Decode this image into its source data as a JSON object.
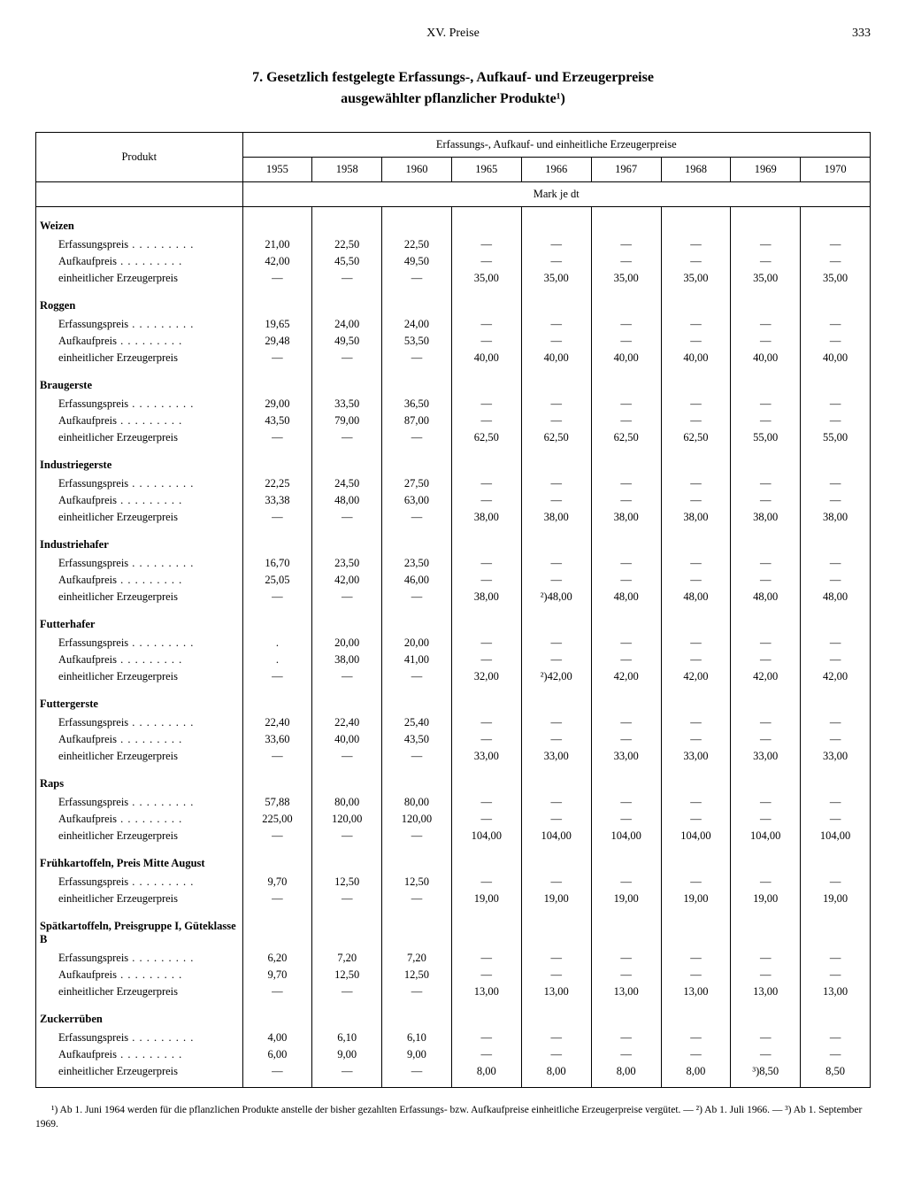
{
  "header": {
    "chapter": "XV. Preise",
    "page": "333"
  },
  "title_l1": "7. Gesetzlich festgelegte Erfassungs-, Aufkauf- und Erzeugerpreise",
  "title_l2": "ausgewählter pflanzlicher Produkte¹)",
  "table": {
    "spanner": "Erfassungs-, Aufkauf- und einheitliche Erzeugerpreise",
    "col_label": "Produkt",
    "unit_row": "Mark je dt",
    "years": [
      "1955",
      "1958",
      "1960",
      "1965",
      "1966",
      "1967",
      "1968",
      "1969",
      "1970"
    ],
    "row_labels": {
      "erf": "Erfassungspreis",
      "auf": "Aufkaufpreis",
      "ein": "einheitlicher Erzeugerpreis"
    },
    "groups": [
      {
        "name": "Weizen",
        "rows": [
          {
            "k": "erf",
            "v": [
              "21,00",
              "22,50",
              "22,50",
              "—",
              "—",
              "—",
              "—",
              "—",
              "—"
            ]
          },
          {
            "k": "auf",
            "v": [
              "42,00",
              "45,50",
              "49,50",
              "—",
              "—",
              "—",
              "—",
              "—",
              "—"
            ]
          },
          {
            "k": "ein",
            "v": [
              "—",
              "—",
              "—",
              "35,00",
              "35,00",
              "35,00",
              "35,00",
              "35,00",
              "35,00"
            ]
          }
        ]
      },
      {
        "name": "Roggen",
        "rows": [
          {
            "k": "erf",
            "v": [
              "19,65",
              "24,00",
              "24,00",
              "—",
              "—",
              "—",
              "—",
              "—",
              "—"
            ]
          },
          {
            "k": "auf",
            "v": [
              "29,48",
              "49,50",
              "53,50",
              "—",
              "—",
              "—",
              "—",
              "—",
              "—"
            ]
          },
          {
            "k": "ein",
            "v": [
              "—",
              "—",
              "—",
              "40,00",
              "40,00",
              "40,00",
              "40,00",
              "40,00",
              "40,00"
            ]
          }
        ]
      },
      {
        "name": "Braugerste",
        "rows": [
          {
            "k": "erf",
            "v": [
              "29,00",
              "33,50",
              "36,50",
              "—",
              "—",
              "—",
              "—",
              "—",
              "—"
            ]
          },
          {
            "k": "auf",
            "v": [
              "43,50",
              "79,00",
              "87,00",
              "—",
              "—",
              "—",
              "—",
              "—",
              "—"
            ]
          },
          {
            "k": "ein",
            "v": [
              "—",
              "—",
              "—",
              "62,50",
              "62,50",
              "62,50",
              "62,50",
              "55,00",
              "55,00"
            ]
          }
        ]
      },
      {
        "name": "Industriegerste",
        "rows": [
          {
            "k": "erf",
            "v": [
              "22,25",
              "24,50",
              "27,50",
              "—",
              "—",
              "—",
              "—",
              "—",
              "—"
            ]
          },
          {
            "k": "auf",
            "v": [
              "33,38",
              "48,00",
              "63,00",
              "—",
              "—",
              "—",
              "—",
              "—",
              "—"
            ]
          },
          {
            "k": "ein",
            "v": [
              "—",
              "—",
              "—",
              "38,00",
              "38,00",
              "38,00",
              "38,00",
              "38,00",
              "38,00"
            ]
          }
        ]
      },
      {
        "name": "Industriehafer",
        "rows": [
          {
            "k": "erf",
            "v": [
              "16,70",
              "23,50",
              "23,50",
              "—",
              "—",
              "—",
              "—",
              "—",
              "—"
            ]
          },
          {
            "k": "auf",
            "v": [
              "25,05",
              "42,00",
              "46,00",
              "—",
              "—",
              "—",
              "—",
              "—",
              "—"
            ]
          },
          {
            "k": "ein",
            "v": [
              "—",
              "—",
              "—",
              "38,00",
              "²)48,00",
              "48,00",
              "48,00",
              "48,00",
              "48,00"
            ]
          }
        ]
      },
      {
        "name": "Futterhafer",
        "rows": [
          {
            "k": "erf",
            "v": [
              ".",
              "20,00",
              "20,00",
              "—",
              "—",
              "—",
              "—",
              "—",
              "—"
            ]
          },
          {
            "k": "auf",
            "v": [
              ".",
              "38,00",
              "41,00",
              "—",
              "—",
              "—",
              "—",
              "—",
              "—"
            ]
          },
          {
            "k": "ein",
            "v": [
              "—",
              "—",
              "—",
              "32,00",
              "²)42,00",
              "42,00",
              "42,00",
              "42,00",
              "42,00"
            ]
          }
        ]
      },
      {
        "name": "Futtergerste",
        "rows": [
          {
            "k": "erf",
            "v": [
              "22,40",
              "22,40",
              "25,40",
              "—",
              "—",
              "—",
              "—",
              "—",
              "—"
            ]
          },
          {
            "k": "auf",
            "v": [
              "33,60",
              "40,00",
              "43,50",
              "—",
              "—",
              "—",
              "—",
              "—",
              "—"
            ]
          },
          {
            "k": "ein",
            "v": [
              "—",
              "—",
              "—",
              "33,00",
              "33,00",
              "33,00",
              "33,00",
              "33,00",
              "33,00"
            ]
          }
        ]
      },
      {
        "name": "Raps",
        "rows": [
          {
            "k": "erf",
            "v": [
              "57,88",
              "80,00",
              "80,00",
              "—",
              "—",
              "—",
              "—",
              "—",
              "—"
            ]
          },
          {
            "k": "auf",
            "v": [
              "225,00",
              "120,00",
              "120,00",
              "—",
              "—",
              "—",
              "—",
              "—",
              "—"
            ]
          },
          {
            "k": "ein",
            "v": [
              "—",
              "—",
              "—",
              "104,00",
              "104,00",
              "104,00",
              "104,00",
              "104,00",
              "104,00"
            ]
          }
        ]
      },
      {
        "name": "Frühkartoffeln, Preis Mitte August",
        "rows": [
          {
            "k": "erf",
            "v": [
              "9,70",
              "12,50",
              "12,50",
              "—",
              "—",
              "—",
              "—",
              "—",
              "—"
            ]
          },
          {
            "k": "ein",
            "v": [
              "—",
              "—",
              "—",
              "19,00",
              "19,00",
              "19,00",
              "19,00",
              "19,00",
              "19,00"
            ]
          }
        ]
      },
      {
        "name": "Spätkartoffeln, Preisgruppe I, Güteklasse B",
        "rows": [
          {
            "k": "erf",
            "v": [
              "6,20",
              "7,20",
              "7,20",
              "—",
              "—",
              "—",
              "—",
              "—",
              "—"
            ]
          },
          {
            "k": "auf",
            "v": [
              "9,70",
              "12,50",
              "12,50",
              "—",
              "—",
              "—",
              "—",
              "—",
              "—"
            ]
          },
          {
            "k": "ein",
            "v": [
              "—",
              "—",
              "—",
              "13,00",
              "13,00",
              "13,00",
              "13,00",
              "13,00",
              "13,00"
            ]
          }
        ]
      },
      {
        "name": "Zuckerrüben",
        "rows": [
          {
            "k": "erf",
            "v": [
              "4,00",
              "6,10",
              "6,10",
              "—",
              "—",
              "—",
              "—",
              "—",
              "—"
            ]
          },
          {
            "k": "auf",
            "v": [
              "6,00",
              "9,00",
              "9,00",
              "—",
              "—",
              "—",
              "—",
              "—",
              "—"
            ]
          },
          {
            "k": "ein",
            "v": [
              "—",
              "—",
              "—",
              "8,00",
              "8,00",
              "8,00",
              "8,00",
              "³)8,50",
              "8,50"
            ]
          }
        ]
      }
    ]
  },
  "footnote": "¹) Ab 1. Juni 1964 werden für die pflanzlichen Produkte anstelle der bisher gezahlten Erfassungs- bzw. Aufkaufpreise einheitliche Erzeugerpreise vergütet. — ²) Ab 1. Juli 1966. — ³) Ab 1. September 1969."
}
